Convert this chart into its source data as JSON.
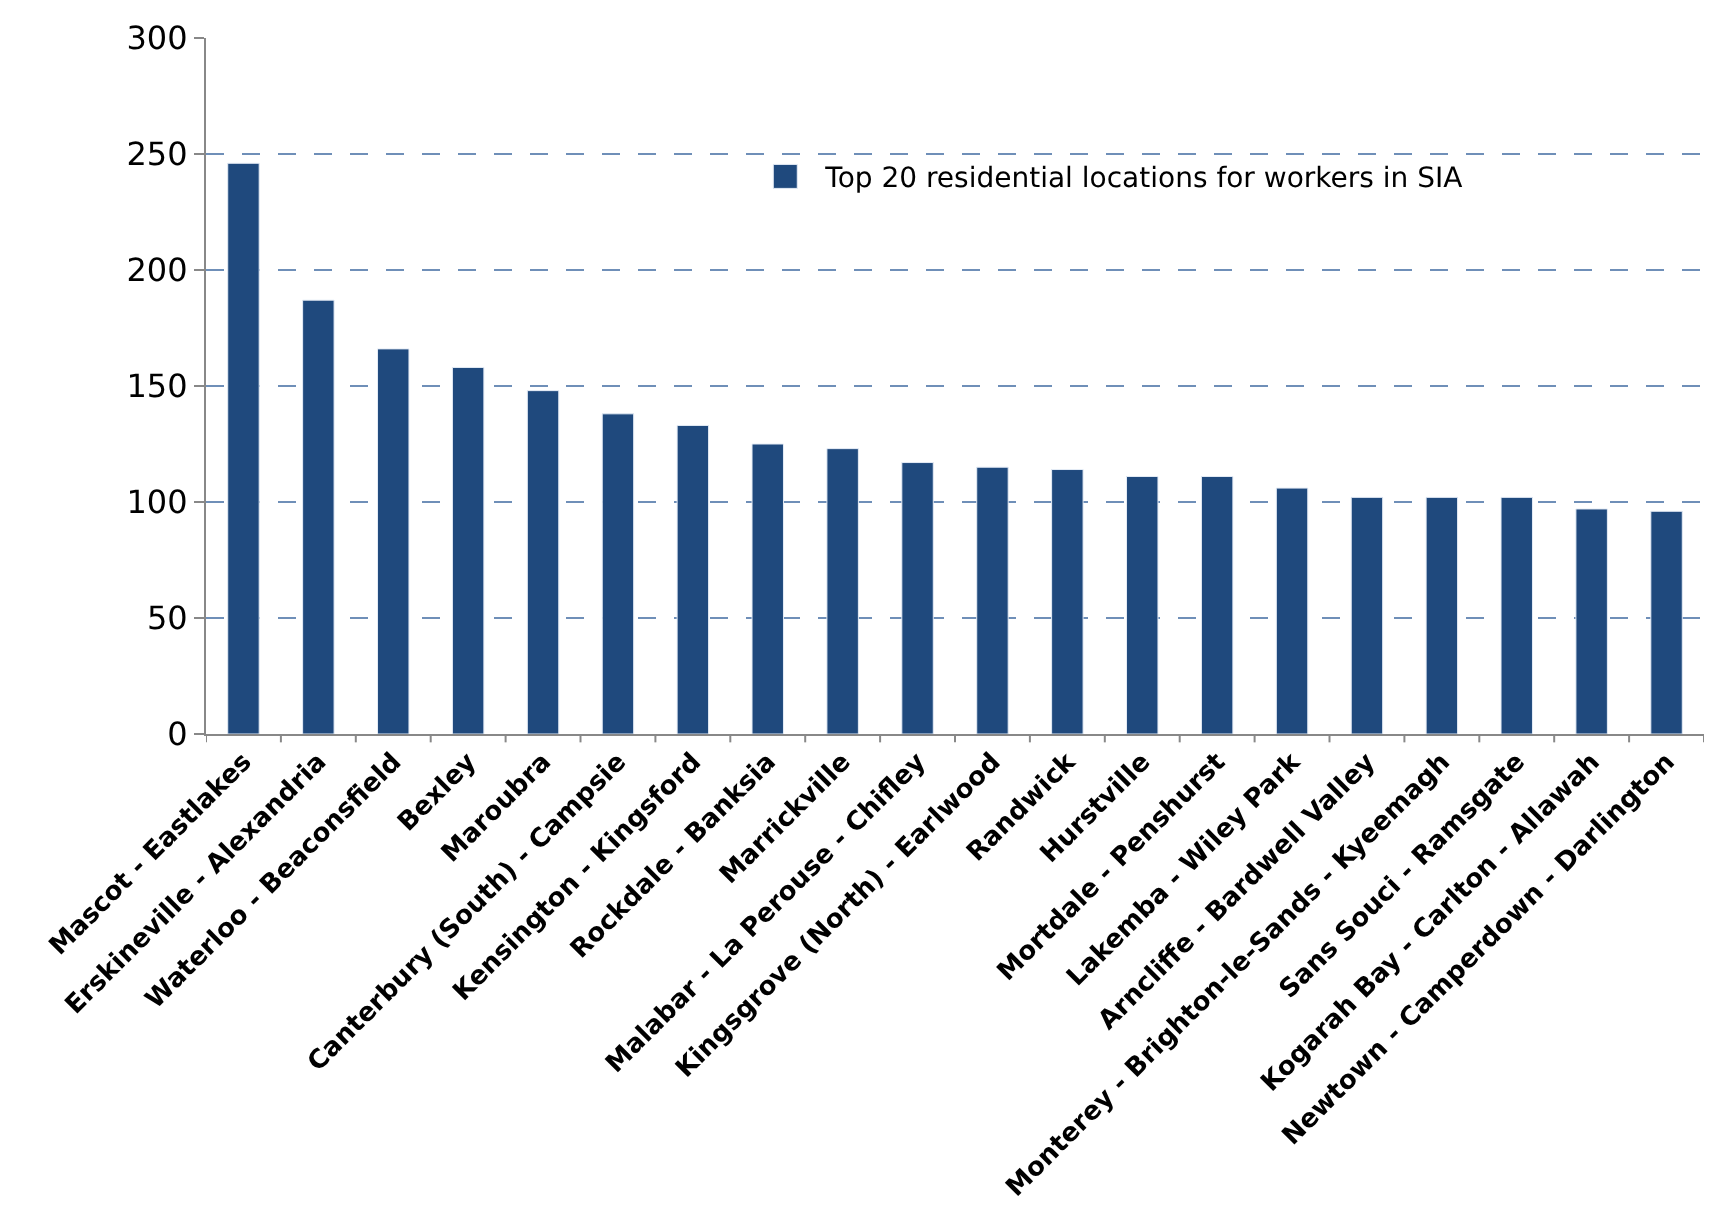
{
  "chart_data": {
    "type": "bar",
    "categories": [
      "Mascot - Eastlakes",
      "Erskineville - Alexandria",
      "Waterloo - Beaconsfield",
      "Bexley",
      "Maroubra",
      "Canterbury (South) - Campsie",
      "Kensington - Kingsford",
      "Rockdale - Banksia",
      "Marrickville",
      "Malabar - La Perouse - Chifley",
      "Kingsgrove (North) - Earlwood",
      "Randwick",
      "Hurstville",
      "Mortdale - Penshurst",
      "Lakemba - Wiley Park",
      "Arncliffe - Bardwell Valley",
      "Monterey - Brighton-le-Sands - Kyeemagh",
      "Sans Souci - Ramsgate",
      "Kogarah Bay - Carlton - Allawah",
      "Newtown - Camperdown - Darlington"
    ],
    "series": [
      {
        "name": "Top 20 residential locations for workers in SIA",
        "color": "#1f497d",
        "values": [
          246,
          187,
          166,
          158,
          148,
          138,
          133,
          125,
          123,
          117,
          115,
          114,
          111,
          111,
          106,
          102,
          102,
          102,
          97,
          96
        ]
      }
    ],
    "ylim": [
      0,
      300
    ],
    "yticks": [
      0,
      50,
      100,
      150,
      200,
      250,
      300
    ],
    "grid": "y",
    "legend": "top right"
  }
}
